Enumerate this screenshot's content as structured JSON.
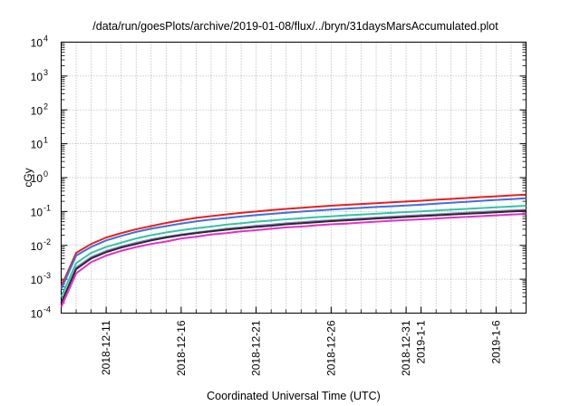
{
  "chart_data": {
    "type": "line",
    "title": "/data/run/goesPlots/archive/2019-01-08/flux/../bryn/31daysMarsAccumulated.plot",
    "xlabel": "Coordinated Universal Time (UTC)",
    "ylabel": "cGy",
    "yscale": "log",
    "ylim": [
      0.0001,
      10000
    ],
    "xlim": [
      "2018-12-08",
      "2019-01-08"
    ],
    "grid": true,
    "legend": "none",
    "y_ticks": [
      {
        "value": 0.0001,
        "base": "10",
        "exp": "-4"
      },
      {
        "value": 0.001,
        "base": "10",
        "exp": "-3"
      },
      {
        "value": 0.01,
        "base": "10",
        "exp": "-2"
      },
      {
        "value": 0.1,
        "base": "10",
        "exp": "-1"
      },
      {
        "value": 1,
        "base": "10",
        "exp": "0"
      },
      {
        "value": 10,
        "base": "10",
        "exp": "1"
      },
      {
        "value": 100,
        "base": "10",
        "exp": "2"
      },
      {
        "value": 1000,
        "base": "10",
        "exp": "3"
      },
      {
        "value": 10000,
        "base": "10",
        "exp": "4"
      }
    ],
    "x_ticks": [
      {
        "value": "2018-12-11",
        "label": "2018-12-11"
      },
      {
        "value": "2018-12-16",
        "label": "2018-12-16"
      },
      {
        "value": "2018-12-21",
        "label": "2018-12-21"
      },
      {
        "value": "2018-12-26",
        "label": "2018-12-26"
      },
      {
        "value": "2018-12-31",
        "label": "2018-12-31"
      },
      {
        "value": "2019-01-01",
        "label": "2019-1-1"
      },
      {
        "value": "2019-01-06",
        "label": "2019-1-6"
      }
    ],
    "x": [
      "2018-12-08",
      "2018-12-09",
      "2018-12-10",
      "2018-12-11",
      "2018-12-12",
      "2018-12-13",
      "2018-12-14",
      "2018-12-15",
      "2018-12-16",
      "2018-12-17",
      "2018-12-18",
      "2018-12-19",
      "2018-12-20",
      "2018-12-21",
      "2018-12-22",
      "2018-12-23",
      "2018-12-24",
      "2018-12-25",
      "2018-12-26",
      "2018-12-27",
      "2018-12-28",
      "2018-12-29",
      "2018-12-30",
      "2018-12-31",
      "2019-01-01",
      "2019-01-02",
      "2019-01-03",
      "2019-01-04",
      "2019-01-05",
      "2019-01-06",
      "2019-01-07",
      "2019-01-08"
    ],
    "series": [
      {
        "color": "#e8201d",
        "values": [
          0.0006,
          0.006,
          0.011,
          0.017,
          0.023,
          0.03,
          0.037,
          0.046,
          0.055,
          0.065,
          0.073,
          0.082,
          0.091,
          0.1,
          0.11,
          0.119,
          0.128,
          0.138,
          0.148,
          0.157,
          0.166,
          0.176,
          0.186,
          0.197,
          0.208,
          0.222,
          0.236,
          0.25,
          0.265,
          0.281,
          0.298,
          0.315
        ]
      },
      {
        "color": "#3f6fe0",
        "values": [
          0.0005,
          0.005,
          0.009,
          0.014,
          0.019,
          0.025,
          0.031,
          0.037,
          0.044,
          0.051,
          0.058,
          0.064,
          0.071,
          0.078,
          0.085,
          0.092,
          0.099,
          0.106,
          0.114,
          0.121,
          0.128,
          0.136,
          0.143,
          0.151,
          0.159,
          0.17,
          0.181,
          0.193,
          0.206,
          0.219,
          0.232,
          0.246
        ]
      },
      {
        "color": "#2fc7a2",
        "values": [
          0.0003,
          0.003,
          0.006,
          0.009,
          0.012,
          0.016,
          0.02,
          0.024,
          0.028,
          0.032,
          0.036,
          0.041,
          0.045,
          0.05,
          0.054,
          0.059,
          0.063,
          0.068,
          0.072,
          0.077,
          0.081,
          0.086,
          0.091,
          0.096,
          0.101,
          0.107,
          0.113,
          0.119,
          0.126,
          0.133,
          0.14,
          0.148
        ]
      },
      {
        "color": "#8e7ad0",
        "values": [
          0.0002,
          0.0022,
          0.0045,
          0.0068,
          0.0093,
          0.012,
          0.015,
          0.018,
          0.021,
          0.024,
          0.027,
          0.031,
          0.034,
          0.038,
          0.041,
          0.045,
          0.048,
          0.052,
          0.055,
          0.059,
          0.062,
          0.066,
          0.07,
          0.074,
          0.078,
          0.082,
          0.087,
          0.092,
          0.097,
          0.102,
          0.107,
          0.112
        ]
      },
      {
        "color": "#2a2a2a",
        "values": [
          0.0002,
          0.002,
          0.0041,
          0.0063,
          0.0086,
          0.011,
          0.014,
          0.017,
          0.02,
          0.023,
          0.026,
          0.029,
          0.032,
          0.035,
          0.038,
          0.042,
          0.045,
          0.048,
          0.052,
          0.055,
          0.058,
          0.062,
          0.065,
          0.069,
          0.073,
          0.077,
          0.081,
          0.086,
          0.09,
          0.095,
          0.1,
          0.105
        ]
      },
      {
        "color": "#e62fc8",
        "values": [
          0.00015,
          0.0015,
          0.0032,
          0.005,
          0.0069,
          0.0089,
          0.011,
          0.013,
          0.016,
          0.018,
          0.021,
          0.023,
          0.026,
          0.028,
          0.031,
          0.034,
          0.036,
          0.039,
          0.042,
          0.044,
          0.047,
          0.05,
          0.053,
          0.056,
          0.059,
          0.062,
          0.066,
          0.069,
          0.073,
          0.077,
          0.081,
          0.085
        ]
      }
    ]
  }
}
